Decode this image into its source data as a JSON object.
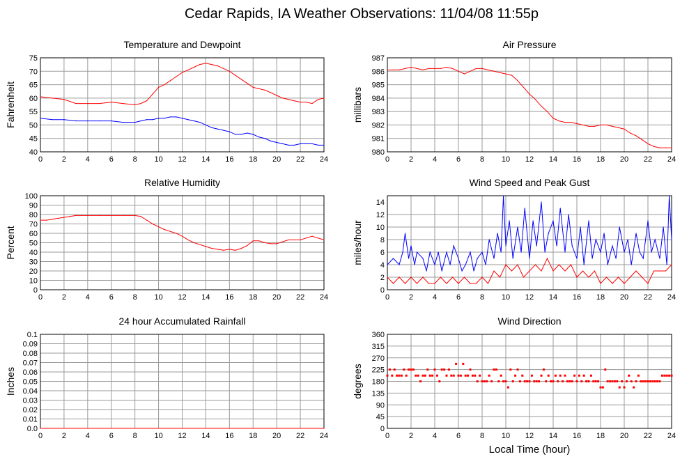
{
  "title": "Cedar Rapids, IA Weather Observations: 11/04/08 11:55p",
  "xlabel_bottom": "Local Time (hour)",
  "colors": {
    "red": "#ff0000",
    "blue": "#0000ff",
    "grid": "#9a9a9a"
  },
  "chart_data": [
    {
      "id": "temp",
      "type": "line",
      "title": "Temperature and Dewpoint",
      "ylabel": "Fahrenheit",
      "xlim": [
        0,
        24
      ],
      "xticks": [
        0,
        2,
        4,
        6,
        8,
        10,
        12,
        14,
        16,
        18,
        20,
        22,
        24
      ],
      "ylim": [
        40,
        75
      ],
      "yticks": [
        40,
        45,
        50,
        55,
        60,
        65,
        70,
        75
      ],
      "grid": true,
      "series": [
        {
          "color": "#ff0000",
          "x": [
            0,
            1,
            2,
            3,
            4,
            5,
            6,
            7,
            8,
            8.5,
            9,
            9.5,
            10,
            10.5,
            11,
            11.5,
            12,
            12.5,
            13,
            13.5,
            14,
            14.5,
            15,
            15.5,
            16,
            16.5,
            17,
            17.5,
            18,
            18.5,
            19,
            19.5,
            20,
            20.5,
            21,
            21.5,
            22,
            22.5,
            23,
            23.5,
            24
          ],
          "y": [
            60.5,
            60,
            59.5,
            58,
            58,
            58,
            58.5,
            58,
            57.5,
            58,
            59,
            61.5,
            64,
            65,
            66.5,
            68,
            69.5,
            70.5,
            71.5,
            72.5,
            73,
            72.5,
            72,
            71,
            70,
            68.5,
            67,
            65.5,
            64,
            63.5,
            63,
            62,
            61,
            60,
            59.5,
            59,
            58.5,
            58.5,
            58,
            59.5,
            60
          ]
        },
        {
          "color": "#0000ff",
          "x": [
            0,
            1,
            2,
            3,
            4,
            5,
            6,
            7,
            8,
            8.5,
            9,
            9.5,
            10,
            10.5,
            11,
            11.5,
            12,
            12.5,
            13,
            13.5,
            14,
            14.5,
            15,
            15.5,
            16,
            16.5,
            17,
            17.5,
            18,
            18.5,
            19,
            19.5,
            20,
            20.5,
            21,
            21.5,
            22,
            22.5,
            23,
            23.5,
            24
          ],
          "y": [
            52.5,
            52,
            52,
            51.5,
            51.5,
            51.5,
            51.5,
            51,
            51,
            51.5,
            52,
            52,
            52.5,
            52.5,
            53,
            53,
            52.5,
            52,
            51.5,
            51,
            50,
            49,
            48.5,
            48,
            47.5,
            46.5,
            46.5,
            47,
            46.5,
            45.5,
            45,
            44,
            43.5,
            43,
            42.5,
            42.5,
            43,
            43,
            43,
            42.5,
            42.5
          ]
        }
      ]
    },
    {
      "id": "pres",
      "type": "line",
      "title": "Air Pressure",
      "ylabel": "millibars",
      "xlim": [
        0,
        24
      ],
      "xticks": [
        0,
        2,
        4,
        6,
        8,
        10,
        12,
        14,
        16,
        18,
        20,
        22,
        24
      ],
      "ylim": [
        980,
        987
      ],
      "yticks": [
        980,
        981,
        982,
        983,
        984,
        985,
        986,
        987
      ],
      "grid": true,
      "series": [
        {
          "color": "#ff0000",
          "x": [
            0,
            0.5,
            1,
            1.5,
            2,
            2.5,
            3,
            3.5,
            4,
            4.5,
            5,
            5.5,
            6,
            6.5,
            7,
            7.5,
            8,
            8.5,
            9,
            9.5,
            10,
            10.5,
            11,
            11.5,
            12,
            12.5,
            13,
            13.5,
            14,
            14.5,
            15,
            15.5,
            16,
            16.5,
            17,
            17.5,
            18,
            18.5,
            19,
            19.5,
            20,
            20.5,
            21,
            21.5,
            22,
            22.5,
            23,
            23.5,
            24
          ],
          "y": [
            986.1,
            986.1,
            986.1,
            986.2,
            986.3,
            986.2,
            986.1,
            986.2,
            986.2,
            986.2,
            986.3,
            986.2,
            986.0,
            985.8,
            986.0,
            986.2,
            986.2,
            986.1,
            986.0,
            985.9,
            985.8,
            985.7,
            985.3,
            984.8,
            984.3,
            983.9,
            983.4,
            983.0,
            982.5,
            982.3,
            982.2,
            982.2,
            982.1,
            982.0,
            981.9,
            981.9,
            982.0,
            982.0,
            981.9,
            981.8,
            981.7,
            981.4,
            981.2,
            980.9,
            980.6,
            980.4,
            980.3,
            980.3,
            980.3
          ]
        }
      ]
    },
    {
      "id": "rh",
      "type": "line",
      "title": "Relative Humidity",
      "ylabel": "Percent",
      "xlim": [
        0,
        24
      ],
      "xticks": [
        0,
        2,
        4,
        6,
        8,
        10,
        12,
        14,
        16,
        18,
        20,
        22,
        24
      ],
      "ylim": [
        0,
        100
      ],
      "yticks": [
        0,
        10,
        20,
        30,
        40,
        50,
        60,
        70,
        80,
        90,
        100
      ],
      "grid": true,
      "series": [
        {
          "color": "#ff0000",
          "x": [
            0,
            0.5,
            1,
            1.5,
            2,
            2.5,
            3,
            3.5,
            4,
            5,
            6,
            7,
            8,
            8.5,
            9,
            9.5,
            10,
            10.5,
            11,
            11.5,
            12,
            12.5,
            13,
            13.5,
            14,
            14.5,
            15,
            15.5,
            16,
            16.5,
            17,
            17.5,
            18,
            18.5,
            19,
            19.5,
            20,
            20.5,
            21,
            21.5,
            22,
            22.5,
            23,
            23.5,
            24
          ],
          "y": [
            74,
            74,
            75,
            76,
            77,
            78,
            79,
            79,
            79,
            79,
            79,
            79,
            79,
            78,
            74,
            70,
            67,
            64,
            62,
            60,
            57,
            53,
            50,
            48,
            46,
            44,
            43,
            42,
            43,
            42,
            44,
            47,
            52,
            52,
            50,
            49,
            49,
            51,
            53,
            53,
            53,
            55,
            57,
            55,
            53
          ]
        }
      ]
    },
    {
      "id": "wind",
      "type": "line",
      "title": "Wind Speed and Peak Gust",
      "ylabel": "miles/hour",
      "xlim": [
        0,
        24
      ],
      "xticks": [
        0,
        2,
        4,
        6,
        8,
        10,
        12,
        14,
        16,
        18,
        20,
        22,
        24
      ],
      "ylim": [
        0,
        15
      ],
      "yticks": [
        0,
        2,
        4,
        6,
        8,
        10,
        12,
        14
      ],
      "grid": true,
      "series": [
        {
          "color": "#0000ff",
          "x": [
            0,
            0.5,
            1,
            1.3,
            1.5,
            1.8,
            2,
            2.3,
            2.5,
            3,
            3.3,
            3.6,
            4,
            4.3,
            4.6,
            5,
            5.3,
            5.6,
            6,
            6.3,
            6.6,
            7,
            7.3,
            7.6,
            8,
            8.3,
            8.6,
            9,
            9.3,
            9.6,
            9.8,
            10,
            10.3,
            10.6,
            11,
            11.3,
            11.6,
            12,
            12.3,
            12.6,
            13,
            13.3,
            13.6,
            14,
            14.3,
            14.6,
            15,
            15.3,
            15.6,
            16,
            16.3,
            16.6,
            17,
            17.3,
            17.6,
            18,
            18.3,
            18.6,
            19,
            19.3,
            19.6,
            20,
            20.3,
            20.6,
            21,
            21.3,
            21.6,
            22,
            22.3,
            22.6,
            23,
            23.3,
            23.6,
            23.8,
            24
          ],
          "y": [
            4,
            5,
            4,
            6,
            9,
            5,
            7,
            4,
            6,
            5,
            3,
            6,
            4,
            6,
            3,
            6,
            4,
            7,
            5,
            3,
            4,
            6,
            3,
            5,
            6,
            4,
            8,
            5,
            9,
            6,
            15,
            7,
            11,
            5,
            10,
            6,
            13,
            5,
            11,
            7,
            14,
            6,
            9,
            11,
            7,
            13,
            6,
            12,
            7,
            5,
            10,
            4,
            11,
            5,
            8,
            6,
            9,
            4,
            7,
            5,
            10,
            6,
            8,
            4,
            9,
            6,
            5,
            11,
            6,
            8,
            5,
            10,
            4,
            15,
            8
          ]
        },
        {
          "color": "#ff0000",
          "x": [
            0,
            0.5,
            1,
            1.5,
            2,
            2.5,
            3,
            3.5,
            4,
            4.5,
            5,
            5.5,
            6,
            6.5,
            7,
            7.5,
            8,
            8.5,
            9,
            9.5,
            10,
            10.5,
            11,
            11.5,
            12,
            12.5,
            13,
            13.5,
            14,
            14.5,
            15,
            15.5,
            16,
            16.5,
            17,
            17.5,
            18,
            18.5,
            19,
            19.5,
            20,
            20.5,
            21,
            21.5,
            22,
            22.5,
            23,
            23.5,
            24
          ],
          "y": [
            2,
            1,
            2,
            1,
            2,
            1,
            2,
            1,
            1,
            2,
            1,
            2,
            1,
            2,
            1,
            1,
            2,
            1,
            3,
            2,
            4,
            3,
            4,
            2,
            3,
            4,
            3,
            5,
            3,
            4,
            3,
            4,
            2,
            3,
            2,
            3,
            1,
            2,
            1,
            2,
            1,
            2,
            3,
            2,
            1,
            3,
            3,
            3,
            4
          ]
        }
      ]
    },
    {
      "id": "rain",
      "type": "line",
      "title": "24 hour Accumulated Rainfall",
      "ylabel": "Inches",
      "xlim": [
        0,
        24
      ],
      "xticks": [
        0,
        2,
        4,
        6,
        8,
        10,
        12,
        14,
        16,
        18,
        20,
        22,
        24
      ],
      "ylim": [
        0.0,
        0.1
      ],
      "yticks": [
        0.0,
        0.01,
        0.02,
        0.03,
        0.04,
        0.05,
        0.06,
        0.07,
        0.08,
        0.09,
        0.1
      ],
      "ytick_labels": [
        "0.0",
        "0.01",
        "0.02",
        "0.03",
        "0.04",
        "0.05",
        "0.06",
        "0.07",
        "0.08",
        "0.09",
        "0.1"
      ],
      "grid": true,
      "series": [
        {
          "color": "#ff0000",
          "x": [
            0,
            24
          ],
          "y": [
            0,
            0
          ]
        }
      ]
    },
    {
      "id": "dir",
      "type": "scatter",
      "title": "Wind Direction",
      "ylabel": "degrees",
      "xlim": [
        0,
        24
      ],
      "xticks": [
        0,
        2,
        4,
        6,
        8,
        10,
        12,
        14,
        16,
        18,
        20,
        22,
        24
      ],
      "ylim": [
        0,
        360
      ],
      "yticks": [
        0,
        45,
        90,
        135,
        180,
        225,
        270,
        315,
        360
      ],
      "grid": true,
      "series": [
        {
          "color": "#ff0000",
          "x": [
            0,
            0.2,
            0.4,
            0.6,
            0.8,
            1,
            1.2,
            1.4,
            1.6,
            1.8,
            2,
            2.2,
            2.4,
            2.6,
            2.8,
            3,
            3.2,
            3.4,
            3.6,
            3.8,
            4,
            4.2,
            4.4,
            4.6,
            4.8,
            5,
            5.2,
            5.4,
            5.6,
            5.8,
            6,
            6.2,
            6.4,
            6.6,
            6.8,
            7,
            7.2,
            7.4,
            7.6,
            7.8,
            8,
            8.2,
            8.4,
            8.6,
            8.8,
            9,
            9.2,
            9.4,
            9.6,
            9.8,
            10,
            10.2,
            10.4,
            10.6,
            10.8,
            11,
            11.2,
            11.4,
            11.6,
            11.8,
            12,
            12.2,
            12.4,
            12.6,
            12.8,
            13,
            13.2,
            13.4,
            13.6,
            13.8,
            14,
            14.2,
            14.4,
            14.6,
            14.8,
            15,
            15.2,
            15.4,
            15.6,
            15.8,
            16,
            16.2,
            16.4,
            16.6,
            16.8,
            17,
            17.2,
            17.4,
            17.6,
            17.8,
            18,
            18.2,
            18.4,
            18.6,
            18.8,
            19,
            19.2,
            19.4,
            19.6,
            19.8,
            20,
            20.2,
            20.4,
            20.6,
            20.8,
            21,
            21.2,
            21.4,
            21.6,
            21.8,
            22,
            22.2,
            22.4,
            22.6,
            22.8,
            23,
            23.2,
            23.4,
            23.6,
            23.8,
            24
          ],
          "y": [
            202,
            225,
            202,
            225,
            202,
            202,
            202,
            225,
            202,
            225,
            225,
            225,
            202,
            202,
            180,
            202,
            202,
            225,
            202,
            202,
            225,
            202,
            180,
            225,
            225,
            202,
            225,
            202,
            202,
            247,
            202,
            202,
            247,
            202,
            202,
            225,
            202,
            202,
            180,
            202,
            180,
            180,
            180,
            202,
            180,
            225,
            225,
            180,
            202,
            180,
            180,
            157,
            225,
            180,
            202,
            225,
            180,
            202,
            180,
            180,
            180,
            202,
            180,
            180,
            180,
            202,
            225,
            180,
            202,
            180,
            180,
            202,
            180,
            202,
            180,
            202,
            180,
            180,
            180,
            202,
            180,
            202,
            180,
            202,
            180,
            180,
            202,
            180,
            180,
            180,
            157,
            157,
            225,
            180,
            180,
            180,
            180,
            180,
            157,
            180,
            157,
            180,
            202,
            180,
            157,
            180,
            202,
            180,
            180,
            180,
            180,
            180,
            180,
            180,
            180,
            180,
            202,
            202,
            202,
            202,
            202
          ]
        }
      ]
    }
  ]
}
